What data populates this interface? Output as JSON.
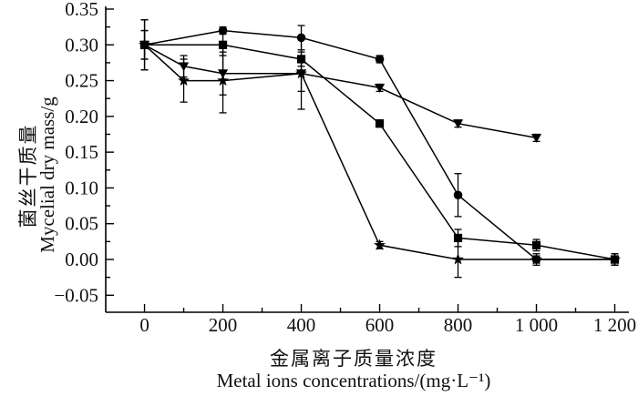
{
  "figure": {
    "background": "#ffffff",
    "ink_color": "#000000",
    "text_color": "#111111"
  },
  "chart_data": {
    "type": "line",
    "title": "",
    "xlabel_zh": "金属离子质量浓度",
    "xlabel_en": "Metal ions concentrations/(mg·L⁻¹)",
    "ylabel_zh": "菌丝干质量",
    "ylabel_en": "Mycelial dry mass/g",
    "xlim": [
      -99,
      1236
    ],
    "ylim": [
      -0.0738,
      0.3538
    ],
    "x_major_ticks": [
      0,
      200,
      400,
      600,
      800,
      1000,
      1200
    ],
    "x_tick_labels": [
      "0",
      "200",
      "400",
      "600",
      "800",
      "1 000",
      "1 200"
    ],
    "x_minor_ticks": [
      100,
      300,
      500,
      700,
      900,
      1100
    ],
    "y_major_ticks": [
      -0.05,
      0.0,
      0.05,
      0.1,
      0.15,
      0.2,
      0.25,
      0.3,
      0.35
    ],
    "y_tick_labels": [
      "−0.05",
      "0.00",
      "0.05",
      "0.10",
      "0.15",
      "0.20",
      "0.25",
      "0.30",
      "0.35"
    ],
    "y_minor_ticks": [
      -0.025,
      0.025,
      0.075,
      0.125,
      0.175,
      0.225,
      0.275,
      0.325
    ],
    "grid": false,
    "legend": "none",
    "marker_color": "#000000",
    "series": [
      {
        "name": "series-circle",
        "marker": "circle",
        "x": [
          0,
          200,
          400,
          600,
          800,
          1000,
          1200
        ],
        "y": [
          0.3,
          0.32,
          0.31,
          0.28,
          0.09,
          0.0,
          0.0
        ],
        "yerr": [
          0.035,
          0.005,
          0.017,
          0.005,
          0.03,
          0.008,
          0.008
        ]
      },
      {
        "name": "series-square",
        "marker": "square",
        "x": [
          0,
          200,
          400,
          600,
          800,
          1000,
          1200
        ],
        "y": [
          0.3,
          0.3,
          0.28,
          0.19,
          0.03,
          0.02,
          0.0
        ],
        "yerr": [
          0.02,
          0.015,
          0.01,
          0.005,
          0.012,
          0.008,
          0.008
        ]
      },
      {
        "name": "series-triangle-down",
        "marker": "triangle-down",
        "x": [
          0,
          100,
          200,
          400,
          600,
          800,
          1000
        ],
        "y": [
          0.3,
          0.27,
          0.26,
          0.26,
          0.24,
          0.19,
          0.17
        ],
        "yerr": [
          0.035,
          0.015,
          0.03,
          0.025,
          0.005,
          0.005,
          0.005
        ]
      },
      {
        "name": "series-star",
        "marker": "star",
        "x": [
          0,
          100,
          200,
          400,
          600,
          800,
          1000,
          1200
        ],
        "y": [
          0.3,
          0.25,
          0.25,
          0.26,
          0.02,
          0.0,
          0.0,
          0.0
        ],
        "yerr": [
          0.02,
          0.03,
          0.045,
          0.05,
          0.005,
          0.025,
          0.005,
          0.008
        ]
      }
    ]
  }
}
